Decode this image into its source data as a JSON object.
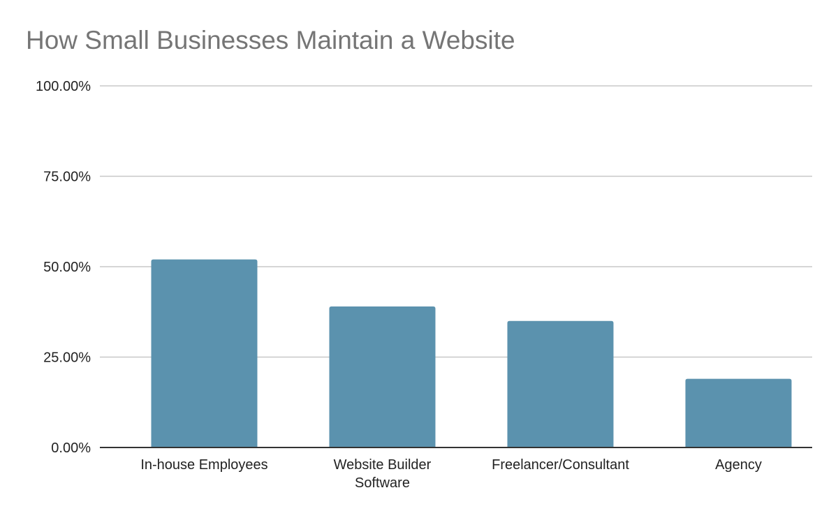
{
  "chart_data": {
    "type": "bar",
    "title": "How Small Businesses Maintain a Website",
    "xlabel": "",
    "ylabel": "",
    "categories": [
      "In-house Employees",
      "Website Builder Software",
      "Freelancer/Consultant",
      "Agency"
    ],
    "category_lines": [
      [
        "In-house Employees"
      ],
      [
        "Website Builder",
        "Software"
      ],
      [
        "Freelancer/Consultant"
      ],
      [
        "Agency"
      ]
    ],
    "values": [
      52,
      39,
      35,
      19
    ],
    "ylim": [
      0,
      100
    ],
    "yticks": [
      0,
      25,
      50,
      75,
      100
    ],
    "ytick_labels": [
      "0.00%",
      "25.00%",
      "50.00%",
      "75.00%",
      "100.00%"
    ],
    "grid": true,
    "legend": "none",
    "colors": {
      "bar": "#5b92ae",
      "grid": "#c8c8c8",
      "axis": "#333333",
      "title": "#757575"
    }
  }
}
